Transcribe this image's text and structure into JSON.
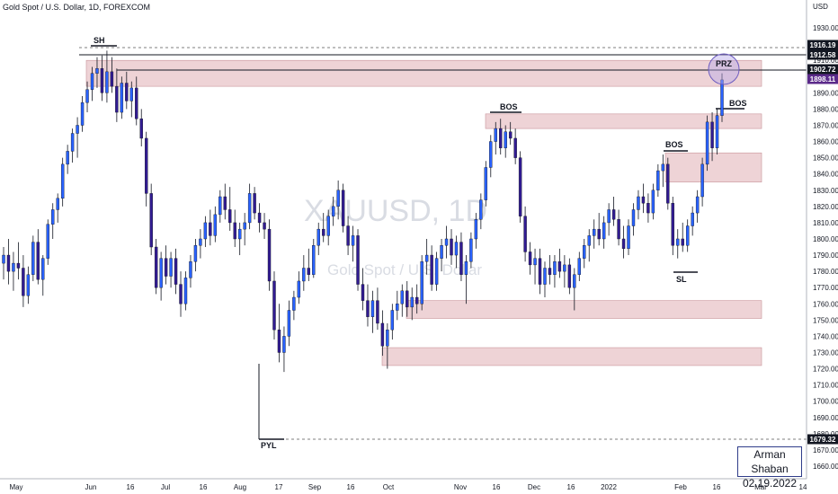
{
  "header": {
    "title": "Gold Spot / U.S. Dollar, 1D, FOREXCOM"
  },
  "currency": "USD",
  "watermark": {
    "symbol": "XAUUSD, 1D",
    "description": "Gold Spot / U.S. Dollar"
  },
  "signature": {
    "name": "Arman Shaban",
    "date": "02.19.2022"
  },
  "colors": {
    "candle_body": "#2e3fa4",
    "candle_up_accent": "#2962ff",
    "candle_down_accent": "#311b92",
    "zone_fill": "#e8c4c8",
    "zone_border": "#c9949a",
    "label_bg": "#131722",
    "current_price_bg": "#5b2a8a",
    "prz_circle": "#9e8fd6"
  },
  "chart_data": {
    "type": "candlestick",
    "ylim": [
      1655,
      1940
    ],
    "y_ticks": [
      1660.0,
      1670.0,
      1680.0,
      1690.0,
      1700.0,
      1710.0,
      1720.0,
      1730.0,
      1740.0,
      1750.0,
      1760.0,
      1770.0,
      1780.0,
      1790.0,
      1800.0,
      1810.0,
      1820.0,
      1830.0,
      1840.0,
      1850.0,
      1860.0,
      1870.0,
      1880.0,
      1890.0,
      1900.0,
      1910.0,
      1930.0
    ],
    "x_ticks": [
      "May",
      "Jun",
      "16",
      "Jul",
      "16",
      "Aug",
      "17",
      "Sep",
      "16",
      "Oct",
      "Nov",
      "16",
      "Dec",
      "16",
      "2022",
      "Feb",
      "16",
      "Mar",
      "14"
    ],
    "price_labels": [
      {
        "value": "1916.19",
        "kind": "dark"
      },
      {
        "value": "1912.58",
        "kind": "dark"
      },
      {
        "value": "1902.72",
        "kind": "dark"
      },
      {
        "value": "1898.11",
        "kind": "current"
      },
      {
        "value": "1679.32",
        "kind": "dark"
      }
    ],
    "annotations": [
      "SH",
      "BOS",
      "BOS",
      "BOS",
      "SL",
      "PYL",
      "PRZ"
    ],
    "zones": [
      {
        "low": 1894,
        "high": 1910
      },
      {
        "low": 1868,
        "high": 1877
      },
      {
        "low": 1835,
        "high": 1853
      },
      {
        "low": 1751,
        "high": 1762
      },
      {
        "low": 1722,
        "high": 1733
      }
    ],
    "candles": [
      {
        "o": 1785,
        "h": 1795,
        "l": 1775,
        "c": 1790
      },
      {
        "o": 1790,
        "h": 1800,
        "l": 1772,
        "c": 1780
      },
      {
        "o": 1780,
        "h": 1792,
        "l": 1768,
        "c": 1785
      },
      {
        "o": 1785,
        "h": 1798,
        "l": 1775,
        "c": 1782
      },
      {
        "o": 1782,
        "h": 1790,
        "l": 1758,
        "c": 1765
      },
      {
        "o": 1765,
        "h": 1783,
        "l": 1760,
        "c": 1778
      },
      {
        "o": 1778,
        "h": 1802,
        "l": 1774,
        "c": 1798
      },
      {
        "o": 1798,
        "h": 1806,
        "l": 1772,
        "c": 1775
      },
      {
        "o": 1775,
        "h": 1790,
        "l": 1765,
        "c": 1788
      },
      {
        "o": 1788,
        "h": 1812,
        "l": 1784,
        "c": 1809
      },
      {
        "o": 1809,
        "h": 1822,
        "l": 1800,
        "c": 1818
      },
      {
        "o": 1818,
        "h": 1828,
        "l": 1810,
        "c": 1825
      },
      {
        "o": 1825,
        "h": 1850,
        "l": 1820,
        "c": 1846
      },
      {
        "o": 1846,
        "h": 1858,
        "l": 1840,
        "c": 1854
      },
      {
        "o": 1854,
        "h": 1868,
        "l": 1847,
        "c": 1865
      },
      {
        "o": 1865,
        "h": 1875,
        "l": 1850,
        "c": 1870
      },
      {
        "o": 1870,
        "h": 1888,
        "l": 1866,
        "c": 1884
      },
      {
        "o": 1884,
        "h": 1897,
        "l": 1878,
        "c": 1892
      },
      {
        "o": 1892,
        "h": 1906,
        "l": 1885,
        "c": 1902
      },
      {
        "o": 1902,
        "h": 1912,
        "l": 1893,
        "c": 1905
      },
      {
        "o": 1905,
        "h": 1913,
        "l": 1885,
        "c": 1890
      },
      {
        "o": 1890,
        "h": 1916,
        "l": 1884,
        "c": 1903
      },
      {
        "o": 1903,
        "h": 1912,
        "l": 1890,
        "c": 1894
      },
      {
        "o": 1894,
        "h": 1905,
        "l": 1872,
        "c": 1878
      },
      {
        "o": 1878,
        "h": 1900,
        "l": 1874,
        "c": 1896
      },
      {
        "o": 1896,
        "h": 1903,
        "l": 1880,
        "c": 1885
      },
      {
        "o": 1885,
        "h": 1897,
        "l": 1875,
        "c": 1893
      },
      {
        "o": 1893,
        "h": 1900,
        "l": 1870,
        "c": 1874
      },
      {
        "o": 1874,
        "h": 1880,
        "l": 1857,
        "c": 1862
      },
      {
        "o": 1862,
        "h": 1866,
        "l": 1820,
        "c": 1828
      },
      {
        "o": 1828,
        "h": 1834,
        "l": 1790,
        "c": 1795
      },
      {
        "o": 1795,
        "h": 1800,
        "l": 1766,
        "c": 1770
      },
      {
        "o": 1770,
        "h": 1792,
        "l": 1762,
        "c": 1788
      },
      {
        "o": 1788,
        "h": 1796,
        "l": 1772,
        "c": 1777
      },
      {
        "o": 1777,
        "h": 1792,
        "l": 1770,
        "c": 1788
      },
      {
        "o": 1788,
        "h": 1794,
        "l": 1766,
        "c": 1772
      },
      {
        "o": 1772,
        "h": 1780,
        "l": 1752,
        "c": 1760
      },
      {
        "o": 1760,
        "h": 1780,
        "l": 1756,
        "c": 1776
      },
      {
        "o": 1776,
        "h": 1790,
        "l": 1770,
        "c": 1786
      },
      {
        "o": 1786,
        "h": 1800,
        "l": 1780,
        "c": 1796
      },
      {
        "o": 1796,
        "h": 1806,
        "l": 1788,
        "c": 1800
      },
      {
        "o": 1800,
        "h": 1814,
        "l": 1795,
        "c": 1810
      },
      {
        "o": 1810,
        "h": 1818,
        "l": 1796,
        "c": 1802
      },
      {
        "o": 1802,
        "h": 1820,
        "l": 1798,
        "c": 1815
      },
      {
        "o": 1815,
        "h": 1830,
        "l": 1810,
        "c": 1826
      },
      {
        "o": 1826,
        "h": 1834,
        "l": 1812,
        "c": 1818
      },
      {
        "o": 1818,
        "h": 1832,
        "l": 1805,
        "c": 1810
      },
      {
        "o": 1810,
        "h": 1818,
        "l": 1795,
        "c": 1800
      },
      {
        "o": 1800,
        "h": 1810,
        "l": 1790,
        "c": 1806
      },
      {
        "o": 1806,
        "h": 1816,
        "l": 1796,
        "c": 1810
      },
      {
        "o": 1810,
        "h": 1834,
        "l": 1806,
        "c": 1828
      },
      {
        "o": 1828,
        "h": 1832,
        "l": 1812,
        "c": 1816
      },
      {
        "o": 1816,
        "h": 1822,
        "l": 1804,
        "c": 1810
      },
      {
        "o": 1810,
        "h": 1816,
        "l": 1800,
        "c": 1806
      },
      {
        "o": 1806,
        "h": 1812,
        "l": 1768,
        "c": 1774
      },
      {
        "o": 1774,
        "h": 1780,
        "l": 1738,
        "c": 1744
      },
      {
        "o": 1744,
        "h": 1760,
        "l": 1724,
        "c": 1730
      },
      {
        "o": 1730,
        "h": 1746,
        "l": 1718,
        "c": 1740
      },
      {
        "o": 1740,
        "h": 1762,
        "l": 1734,
        "c": 1756
      },
      {
        "o": 1756,
        "h": 1768,
        "l": 1750,
        "c": 1764
      },
      {
        "o": 1764,
        "h": 1780,
        "l": 1760,
        "c": 1774
      },
      {
        "o": 1774,
        "h": 1790,
        "l": 1768,
        "c": 1782
      },
      {
        "o": 1782,
        "h": 1794,
        "l": 1774,
        "c": 1778
      },
      {
        "o": 1778,
        "h": 1800,
        "l": 1776,
        "c": 1796
      },
      {
        "o": 1796,
        "h": 1810,
        "l": 1790,
        "c": 1806
      },
      {
        "o": 1806,
        "h": 1816,
        "l": 1798,
        "c": 1802
      },
      {
        "o": 1802,
        "h": 1818,
        "l": 1796,
        "c": 1814
      },
      {
        "o": 1814,
        "h": 1826,
        "l": 1808,
        "c": 1820
      },
      {
        "o": 1820,
        "h": 1836,
        "l": 1812,
        "c": 1830
      },
      {
        "o": 1830,
        "h": 1834,
        "l": 1804,
        "c": 1808
      },
      {
        "o": 1808,
        "h": 1814,
        "l": 1790,
        "c": 1796
      },
      {
        "o": 1796,
        "h": 1808,
        "l": 1786,
        "c": 1802
      },
      {
        "o": 1802,
        "h": 1806,
        "l": 1768,
        "c": 1772
      },
      {
        "o": 1772,
        "h": 1782,
        "l": 1756,
        "c": 1762
      },
      {
        "o": 1762,
        "h": 1772,
        "l": 1746,
        "c": 1752
      },
      {
        "o": 1752,
        "h": 1768,
        "l": 1742,
        "c": 1762
      },
      {
        "o": 1762,
        "h": 1770,
        "l": 1744,
        "c": 1748
      },
      {
        "o": 1748,
        "h": 1756,
        "l": 1728,
        "c": 1734
      },
      {
        "o": 1734,
        "h": 1748,
        "l": 1720,
        "c": 1744
      },
      {
        "o": 1744,
        "h": 1760,
        "l": 1738,
        "c": 1756
      },
      {
        "o": 1756,
        "h": 1768,
        "l": 1750,
        "c": 1760
      },
      {
        "o": 1760,
        "h": 1772,
        "l": 1752,
        "c": 1768
      },
      {
        "o": 1768,
        "h": 1774,
        "l": 1752,
        "c": 1758
      },
      {
        "o": 1758,
        "h": 1770,
        "l": 1750,
        "c": 1764
      },
      {
        "o": 1764,
        "h": 1772,
        "l": 1754,
        "c": 1760
      },
      {
        "o": 1760,
        "h": 1790,
        "l": 1756,
        "c": 1786
      },
      {
        "o": 1786,
        "h": 1800,
        "l": 1778,
        "c": 1790
      },
      {
        "o": 1790,
        "h": 1796,
        "l": 1768,
        "c": 1772
      },
      {
        "o": 1772,
        "h": 1792,
        "l": 1768,
        "c": 1788
      },
      {
        "o": 1788,
        "h": 1800,
        "l": 1780,
        "c": 1796
      },
      {
        "o": 1796,
        "h": 1808,
        "l": 1788,
        "c": 1800
      },
      {
        "o": 1800,
        "h": 1806,
        "l": 1784,
        "c": 1790
      },
      {
        "o": 1790,
        "h": 1802,
        "l": 1782,
        "c": 1798
      },
      {
        "o": 1798,
        "h": 1804,
        "l": 1774,
        "c": 1778
      },
      {
        "o": 1778,
        "h": 1790,
        "l": 1760,
        "c": 1786
      },
      {
        "o": 1786,
        "h": 1804,
        "l": 1782,
        "c": 1800
      },
      {
        "o": 1800,
        "h": 1816,
        "l": 1794,
        "c": 1812
      },
      {
        "o": 1812,
        "h": 1828,
        "l": 1806,
        "c": 1824
      },
      {
        "o": 1824,
        "h": 1848,
        "l": 1820,
        "c": 1844
      },
      {
        "o": 1844,
        "h": 1864,
        "l": 1838,
        "c": 1860
      },
      {
        "o": 1860,
        "h": 1872,
        "l": 1852,
        "c": 1868
      },
      {
        "o": 1868,
        "h": 1874,
        "l": 1852,
        "c": 1856
      },
      {
        "o": 1856,
        "h": 1870,
        "l": 1850,
        "c": 1866
      },
      {
        "o": 1866,
        "h": 1872,
        "l": 1858,
        "c": 1862
      },
      {
        "o": 1862,
        "h": 1868,
        "l": 1846,
        "c": 1850
      },
      {
        "o": 1850,
        "h": 1854,
        "l": 1810,
        "c": 1814
      },
      {
        "o": 1814,
        "h": 1820,
        "l": 1786,
        "c": 1792
      },
      {
        "o": 1792,
        "h": 1798,
        "l": 1778,
        "c": 1784
      },
      {
        "o": 1784,
        "h": 1794,
        "l": 1772,
        "c": 1788
      },
      {
        "o": 1788,
        "h": 1794,
        "l": 1766,
        "c": 1772
      },
      {
        "o": 1772,
        "h": 1786,
        "l": 1764,
        "c": 1782
      },
      {
        "o": 1782,
        "h": 1790,
        "l": 1772,
        "c": 1778
      },
      {
        "o": 1778,
        "h": 1790,
        "l": 1770,
        "c": 1786
      },
      {
        "o": 1786,
        "h": 1794,
        "l": 1776,
        "c": 1780
      },
      {
        "o": 1780,
        "h": 1790,
        "l": 1770,
        "c": 1784
      },
      {
        "o": 1784,
        "h": 1788,
        "l": 1766,
        "c": 1770
      },
      {
        "o": 1770,
        "h": 1782,
        "l": 1756,
        "c": 1778
      },
      {
        "o": 1778,
        "h": 1792,
        "l": 1774,
        "c": 1788
      },
      {
        "o": 1788,
        "h": 1800,
        "l": 1782,
        "c": 1796
      },
      {
        "o": 1796,
        "h": 1806,
        "l": 1786,
        "c": 1802
      },
      {
        "o": 1802,
        "h": 1812,
        "l": 1794,
        "c": 1806
      },
      {
        "o": 1806,
        "h": 1816,
        "l": 1796,
        "c": 1800
      },
      {
        "o": 1800,
        "h": 1814,
        "l": 1794,
        "c": 1810
      },
      {
        "o": 1810,
        "h": 1822,
        "l": 1802,
        "c": 1818
      },
      {
        "o": 1818,
        "h": 1826,
        "l": 1808,
        "c": 1812
      },
      {
        "o": 1812,
        "h": 1818,
        "l": 1796,
        "c": 1800
      },
      {
        "o": 1800,
        "h": 1808,
        "l": 1788,
        "c": 1794
      },
      {
        "o": 1794,
        "h": 1812,
        "l": 1790,
        "c": 1808
      },
      {
        "o": 1808,
        "h": 1822,
        "l": 1802,
        "c": 1818
      },
      {
        "o": 1818,
        "h": 1830,
        "l": 1812,
        "c": 1826
      },
      {
        "o": 1826,
        "h": 1834,
        "l": 1816,
        "c": 1822
      },
      {
        "o": 1822,
        "h": 1828,
        "l": 1810,
        "c": 1816
      },
      {
        "o": 1816,
        "h": 1834,
        "l": 1812,
        "c": 1830
      },
      {
        "o": 1830,
        "h": 1846,
        "l": 1826,
        "c": 1842
      },
      {
        "o": 1842,
        "h": 1852,
        "l": 1832,
        "c": 1846
      },
      {
        "o": 1846,
        "h": 1850,
        "l": 1818,
        "c": 1822
      },
      {
        "o": 1822,
        "h": 1826,
        "l": 1790,
        "c": 1796
      },
      {
        "o": 1796,
        "h": 1806,
        "l": 1788,
        "c": 1800
      },
      {
        "o": 1800,
        "h": 1810,
        "l": 1792,
        "c": 1796
      },
      {
        "o": 1796,
        "h": 1812,
        "l": 1792,
        "c": 1808
      },
      {
        "o": 1808,
        "h": 1820,
        "l": 1802,
        "c": 1816
      },
      {
        "o": 1816,
        "h": 1830,
        "l": 1810,
        "c": 1826
      },
      {
        "o": 1826,
        "h": 1850,
        "l": 1820,
        "c": 1846
      },
      {
        "o": 1846,
        "h": 1876,
        "l": 1842,
        "c": 1872
      },
      {
        "o": 1872,
        "h": 1878,
        "l": 1848,
        "c": 1856
      },
      {
        "o": 1856,
        "h": 1880,
        "l": 1852,
        "c": 1876
      },
      {
        "o": 1876,
        "h": 1902,
        "l": 1872,
        "c": 1898
      }
    ]
  }
}
